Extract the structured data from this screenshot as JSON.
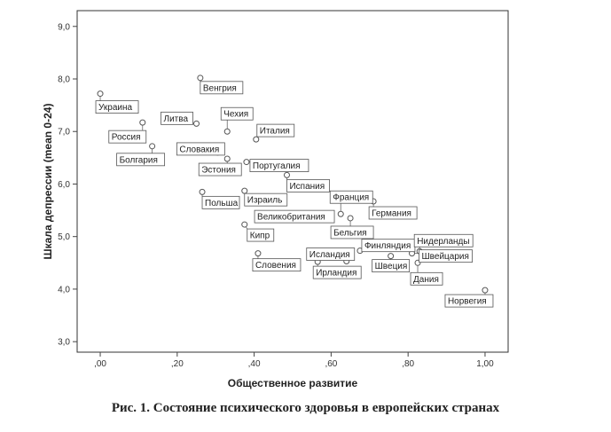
{
  "figure": {
    "caption": "Рис.  1. Состояние психического здоровья в европейских странах"
  },
  "chart_data": {
    "type": "scatter",
    "title": "",
    "xlabel": "Общественное развитие",
    "ylabel": "Шкала депрессии (mean 0-24)",
    "xlim": [
      -0.06,
      1.06
    ],
    "ylim": [
      2.8,
      9.3
    ],
    "x_ticks": [
      0.0,
      0.2,
      0.4,
      0.6,
      0.8,
      1.0
    ],
    "x_tick_labels": [
      ",00",
      ",20",
      ",40",
      ",60",
      ",80",
      "1,00"
    ],
    "y_ticks": [
      3.0,
      4.0,
      5.0,
      6.0,
      7.0,
      8.0,
      9.0
    ],
    "y_tick_labels": [
      "3,0",
      "4,0",
      "5,0",
      "6,0",
      "7,0",
      "8,0",
      "9,0"
    ],
    "grid": false,
    "legend": "none",
    "colors": {
      "point": "#555555",
      "axis": "#444444",
      "plot_border": "#333333"
    },
    "points": [
      {
        "label": "Украина",
        "x": 0.0,
        "y": 7.72
      },
      {
        "label": "Россия",
        "x": 0.11,
        "y": 7.17
      },
      {
        "label": "Болгария",
        "x": 0.135,
        "y": 6.72
      },
      {
        "label": "Венгрия",
        "x": 0.26,
        "y": 8.02
      },
      {
        "label": "Литва",
        "x": 0.25,
        "y": 7.15
      },
      {
        "label": "Чехия",
        "x": 0.33,
        "y": 7.0
      },
      {
        "label": "Словакия",
        "x": 0.305,
        "y": 6.6
      },
      {
        "label": "Эстония",
        "x": 0.33,
        "y": 6.48
      },
      {
        "label": "Италия",
        "x": 0.405,
        "y": 6.85
      },
      {
        "label": "Португалия",
        "x": 0.38,
        "y": 6.42
      },
      {
        "label": "Испания",
        "x": 0.485,
        "y": 6.17
      },
      {
        "label": "Польша",
        "x": 0.265,
        "y": 5.85
      },
      {
        "label": "Израиль",
        "x": 0.375,
        "y": 5.87
      },
      {
        "label": "Франция",
        "x": 0.625,
        "y": 5.43
      },
      {
        "label": "Великобритания",
        "x": 0.59,
        "y": 5.33
      },
      {
        "label": "Бельгия",
        "x": 0.65,
        "y": 5.35
      },
      {
        "label": "Германия",
        "x": 0.71,
        "y": 5.67
      },
      {
        "label": "Кипр",
        "x": 0.375,
        "y": 5.23
      },
      {
        "label": "Финляндия",
        "x": 0.675,
        "y": 4.73
      },
      {
        "label": "Нидерланды",
        "x": 0.83,
        "y": 4.72
      },
      {
        "label": "Швейцария",
        "x": 0.81,
        "y": 4.68
      },
      {
        "label": "Словения",
        "x": 0.41,
        "y": 4.68
      },
      {
        "label": "Исландия",
        "x": 0.64,
        "y": 4.53
      },
      {
        "label": "Ирландия",
        "x": 0.565,
        "y": 4.52
      },
      {
        "label": "Швеция",
        "x": 0.755,
        "y": 4.63
      },
      {
        "label": "Дания",
        "x": 0.825,
        "y": 4.5
      },
      {
        "label": "Норвегия",
        "x": 1.0,
        "y": 3.98
      }
    ]
  }
}
